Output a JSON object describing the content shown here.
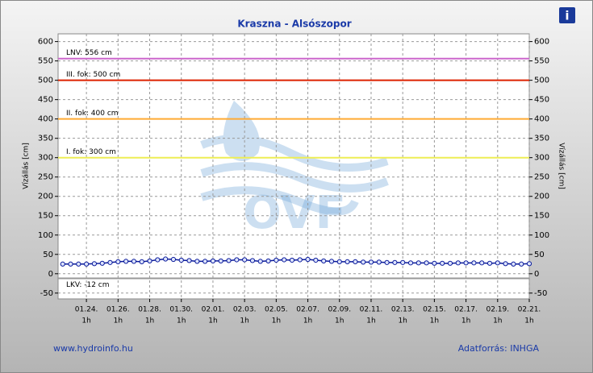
{
  "chart_data": {
    "type": "line",
    "title": "Kraszna - Alsószopor",
    "ylabel": "Vízállás [cm]",
    "y2label": "Vízállás [cm]",
    "source_left": "www.hydroinfo.hu",
    "source_right": "Adatforrás: INHGA",
    "watermark": "OVF",
    "info_icon": "i",
    "ylim": [
      -65,
      620
    ],
    "yticks": [
      -50,
      0,
      50,
      100,
      150,
      200,
      250,
      300,
      350,
      400,
      450,
      500,
      550,
      600
    ],
    "y2lim": [
      -65,
      620
    ],
    "y2ticks": [
      -50,
      0,
      50,
      100,
      150,
      200,
      250,
      300,
      350,
      400,
      450,
      500,
      550,
      600
    ],
    "xlim": [
      "01.22. 6h",
      "02.21. 1h"
    ],
    "xticks": [
      {
        "date": "01.24.",
        "hour": "1h"
      },
      {
        "date": "01.26.",
        "hour": "1h"
      },
      {
        "date": "01.28.",
        "hour": "1h"
      },
      {
        "date": "01.30.",
        "hour": "1h"
      },
      {
        "date": "02.01.",
        "hour": "1h"
      },
      {
        "date": "02.03.",
        "hour": "1h"
      },
      {
        "date": "02.05.",
        "hour": "1h"
      },
      {
        "date": "02.07.",
        "hour": "1h"
      },
      {
        "date": "02.09.",
        "hour": "1h"
      },
      {
        "date": "02.11.",
        "hour": "1h"
      },
      {
        "date": "02.13.",
        "hour": "1h"
      },
      {
        "date": "02.15.",
        "hour": "1h"
      },
      {
        "date": "02.17.",
        "hour": "1h"
      },
      {
        "date": "02.19.",
        "hour": "1h"
      },
      {
        "date": "02.21.",
        "hour": "1h"
      }
    ],
    "grid": true,
    "thresholds": [
      {
        "label": "LNV: 556 cm",
        "value": 556,
        "color": "#cc66cc"
      },
      {
        "label": "III. fok: 500 cm",
        "value": 500,
        "color": "#dd2200"
      },
      {
        "label": "II. fok: 400 cm",
        "value": 400,
        "color": "#ffaa33"
      },
      {
        "label": "I. fok: 300 cm",
        "value": 300,
        "color": "#eeee55"
      },
      {
        "label": "LKV: -12 cm",
        "value": -12,
        "color": "#999999"
      }
    ],
    "x": [
      "01.22. 13h",
      "01.23. 1h",
      "01.23. 13h",
      "01.24. 1h",
      "01.24. 13h",
      "01.25. 1h",
      "01.25. 13h",
      "01.26. 1h",
      "01.26. 13h",
      "01.27. 1h",
      "01.27. 13h",
      "01.28. 1h",
      "01.28. 13h",
      "01.29. 1h",
      "01.29. 13h",
      "01.30. 1h",
      "01.30. 13h",
      "01.31. 1h",
      "01.31. 13h",
      "02.01. 1h",
      "02.01. 13h",
      "02.02. 1h",
      "02.02. 13h",
      "02.03. 1h",
      "02.03. 13h",
      "02.04. 1h",
      "02.04. 13h",
      "02.05. 1h",
      "02.05. 13h",
      "02.06. 1h",
      "02.06. 13h",
      "02.07. 1h",
      "02.07. 13h",
      "02.08. 1h",
      "02.08. 13h",
      "02.09. 1h",
      "02.09. 13h",
      "02.10. 1h",
      "02.10. 13h",
      "02.11. 1h",
      "02.11. 13h",
      "02.12. 1h",
      "02.12. 13h",
      "02.13. 1h",
      "02.13. 13h",
      "02.14. 1h",
      "02.14. 13h",
      "02.15. 1h",
      "02.15. 13h",
      "02.16. 1h",
      "02.16. 13h",
      "02.17. 1h",
      "02.17. 13h",
      "02.18. 1h",
      "02.18. 13h",
      "02.19. 1h",
      "02.19. 13h",
      "02.20. 1h",
      "02.20. 13h",
      "02.21. 1h"
    ],
    "series": [
      {
        "color": "#0a1a9a",
        "values": [
          25,
          25,
          25,
          25,
          26,
          27,
          29,
          31,
          32,
          32,
          31,
          33,
          36,
          38,
          37,
          35,
          34,
          32,
          32,
          33,
          33,
          34,
          36,
          36,
          34,
          32,
          33,
          35,
          36,
          35,
          36,
          37,
          35,
          33,
          32,
          31,
          31,
          31,
          30,
          30,
          30,
          29,
          29,
          29,
          28,
          28,
          28,
          27,
          27,
          27,
          28,
          28,
          28,
          28,
          27,
          28,
          26,
          25,
          25,
          26
        ]
      }
    ]
  }
}
